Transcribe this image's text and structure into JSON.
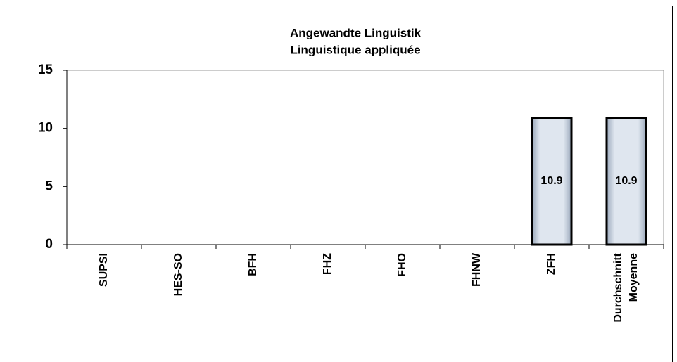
{
  "chart_data": {
    "type": "bar",
    "title": [
      "Angewandte Linguistik",
      "Linguistique appliquée"
    ],
    "categories": [
      "SUPSI",
      "HES-SO",
      "BFH",
      "FHZ",
      "FHO",
      "FHNW",
      "ZFH",
      [
        "Durchschnitt",
        "Moyenne"
      ]
    ],
    "values": [
      null,
      null,
      null,
      null,
      null,
      null,
      10.9,
      10.9
    ],
    "color": "#c9d3e0",
    "ylim": [
      0,
      15
    ],
    "yticks": [
      0,
      5,
      10,
      15
    ],
    "grid": false
  }
}
